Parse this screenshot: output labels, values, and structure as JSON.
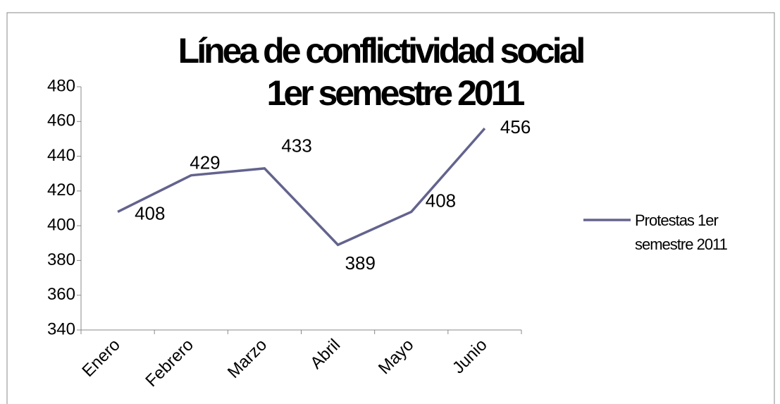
{
  "chart_data": {
    "type": "line",
    "title": [
      "Línea de conflictividad social",
      "1er semestre 2011"
    ],
    "categories": [
      "Enero",
      "Febrero",
      "Marzo",
      "Abril",
      "Mayo",
      "Junio"
    ],
    "series": [
      {
        "name": "Protestas 1er semestre 2011",
        "color": "#63638e",
        "values": [
          408,
          429,
          433,
          389,
          408,
          456
        ]
      }
    ],
    "ylim": [
      340,
      480
    ],
    "yticks": [
      340,
      360,
      380,
      400,
      420,
      440,
      460,
      480
    ],
    "legend": "right"
  }
}
